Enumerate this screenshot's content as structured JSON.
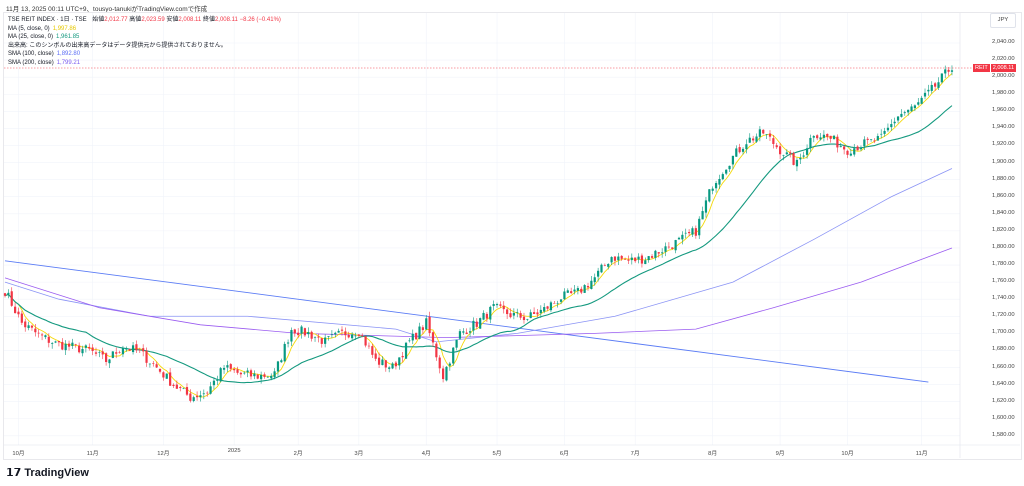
{
  "caption": "11月 13, 2025 00:11 UTC+9、tousyo-tanukiがTradingView.comで作成",
  "legend": {
    "symbol": "TSE REIT INDEX · 1日 · TSE",
    "open_label": "始値",
    "open": "2,012.77",
    "high_label": "高値",
    "high": "2,023.59",
    "low_label": "安値",
    "low": "2,008.11",
    "close_label": "終値",
    "close": "2,008.11",
    "change": "−8.26 (−0.41%)",
    "ma5_label": "MA (5, close, 0)",
    "ma5": "1,997.86",
    "ma25_label": "MA (25, close, 0)",
    "ma25": "1,961.85",
    "volume_note": "出来高: このシンボルの出来高データはデータ提供元から提供されておりません。",
    "sma100_label": "SMA (100, close)",
    "sma100": "1,892.80",
    "sma200_label": "SMA (200, close)",
    "sma200": "1,799.21"
  },
  "currency": "JPY",
  "price_tag": {
    "symbol": "REIT",
    "value": "2,008.11"
  },
  "brand": "TradingView",
  "colors": {
    "up": "#089981",
    "down": "#f23645",
    "ma5": "#f5d90a",
    "ma25": "#14997f",
    "sma100": "#8a93f5",
    "sma200": "#9a5bf0",
    "trend": "#5b7cf5"
  },
  "chart_data": {
    "type": "candlestick",
    "ylim": [
      1570,
      2050
    ],
    "y_ticks": [
      "2,040.00",
      "2,020.00",
      "2,000.00",
      "1,980.00",
      "1,960.00",
      "1,940.00",
      "1,920.00",
      "1,900.00",
      "1,880.00",
      "1,860.00",
      "1,840.00",
      "1,820.00",
      "1,800.00",
      "1,780.00",
      "1,760.00",
      "1,740.00",
      "1,720.00",
      "1,700.00",
      "1,680.00",
      "1,660.00",
      "1,640.00",
      "1,620.00",
      "1,600.00",
      "1,580.00"
    ],
    "y_tick_values": [
      2040,
      2020,
      2000,
      1980,
      1960,
      1940,
      1920,
      1900,
      1880,
      1860,
      1840,
      1820,
      1800,
      1780,
      1760,
      1740,
      1720,
      1700,
      1680,
      1660,
      1640,
      1620,
      1600,
      1580
    ],
    "x_ticks": [
      {
        "label": "10月",
        "day": 4
      },
      {
        "label": "11月",
        "day": 26
      },
      {
        "label": "12月",
        "day": 47
      },
      {
        "label": "2025",
        "day": 68
      },
      {
        "label": "2月",
        "day": 87
      },
      {
        "label": "3月",
        "day": 105
      },
      {
        "label": "4月",
        "day": 125
      },
      {
        "label": "5月",
        "day": 146
      },
      {
        "label": "6月",
        "day": 166
      },
      {
        "label": "7月",
        "day": 187
      },
      {
        "label": "8月",
        "day": 210
      },
      {
        "label": "9月",
        "day": 230
      },
      {
        "label": "10月",
        "day": 250
      },
      {
        "label": "11月",
        "day": 272
      }
    ],
    "days": 282,
    "weekly_closes": [
      1750,
      1712,
      1698,
      1688,
      1684,
      1680,
      1668,
      1685,
      1678,
      1660,
      1640,
      1625,
      1632,
      1660,
      1652,
      1650,
      1652,
      1705,
      1700,
      1690,
      1700,
      1703,
      1668,
      1660,
      1690,
      1712,
      1650,
      1700,
      1712,
      1730,
      1722,
      1718,
      1728,
      1742,
      1748,
      1765,
      1790,
      1785,
      1788,
      1798,
      1808,
      1820,
      1875,
      1902,
      1925,
      1935,
      1915,
      1898,
      1935,
      1928,
      1915,
      1922,
      1928,
      1955,
      1965,
      1985,
      2008
    ],
    "sma100": [
      [
        0,
        1760
      ],
      [
        16,
        1740
      ],
      [
        43,
        1720
      ],
      [
        72,
        1720
      ],
      [
        116,
        1705
      ],
      [
        128,
        1690
      ],
      [
        152,
        1700
      ],
      [
        181,
        1720
      ],
      [
        216,
        1760
      ],
      [
        240,
        1810
      ],
      [
        263,
        1860
      ],
      [
        281,
        1893
      ]
    ],
    "sma200": [
      [
        0,
        1765
      ],
      [
        28,
        1730
      ],
      [
        58,
        1710
      ],
      [
        87,
        1700
      ],
      [
        131,
        1695
      ],
      [
        175,
        1700
      ],
      [
        205,
        1705
      ],
      [
        228,
        1730
      ],
      [
        254,
        1760
      ],
      [
        281,
        1800
      ]
    ],
    "trendline": [
      [
        0,
        1785
      ],
      [
        274,
        1643
      ]
    ]
  }
}
